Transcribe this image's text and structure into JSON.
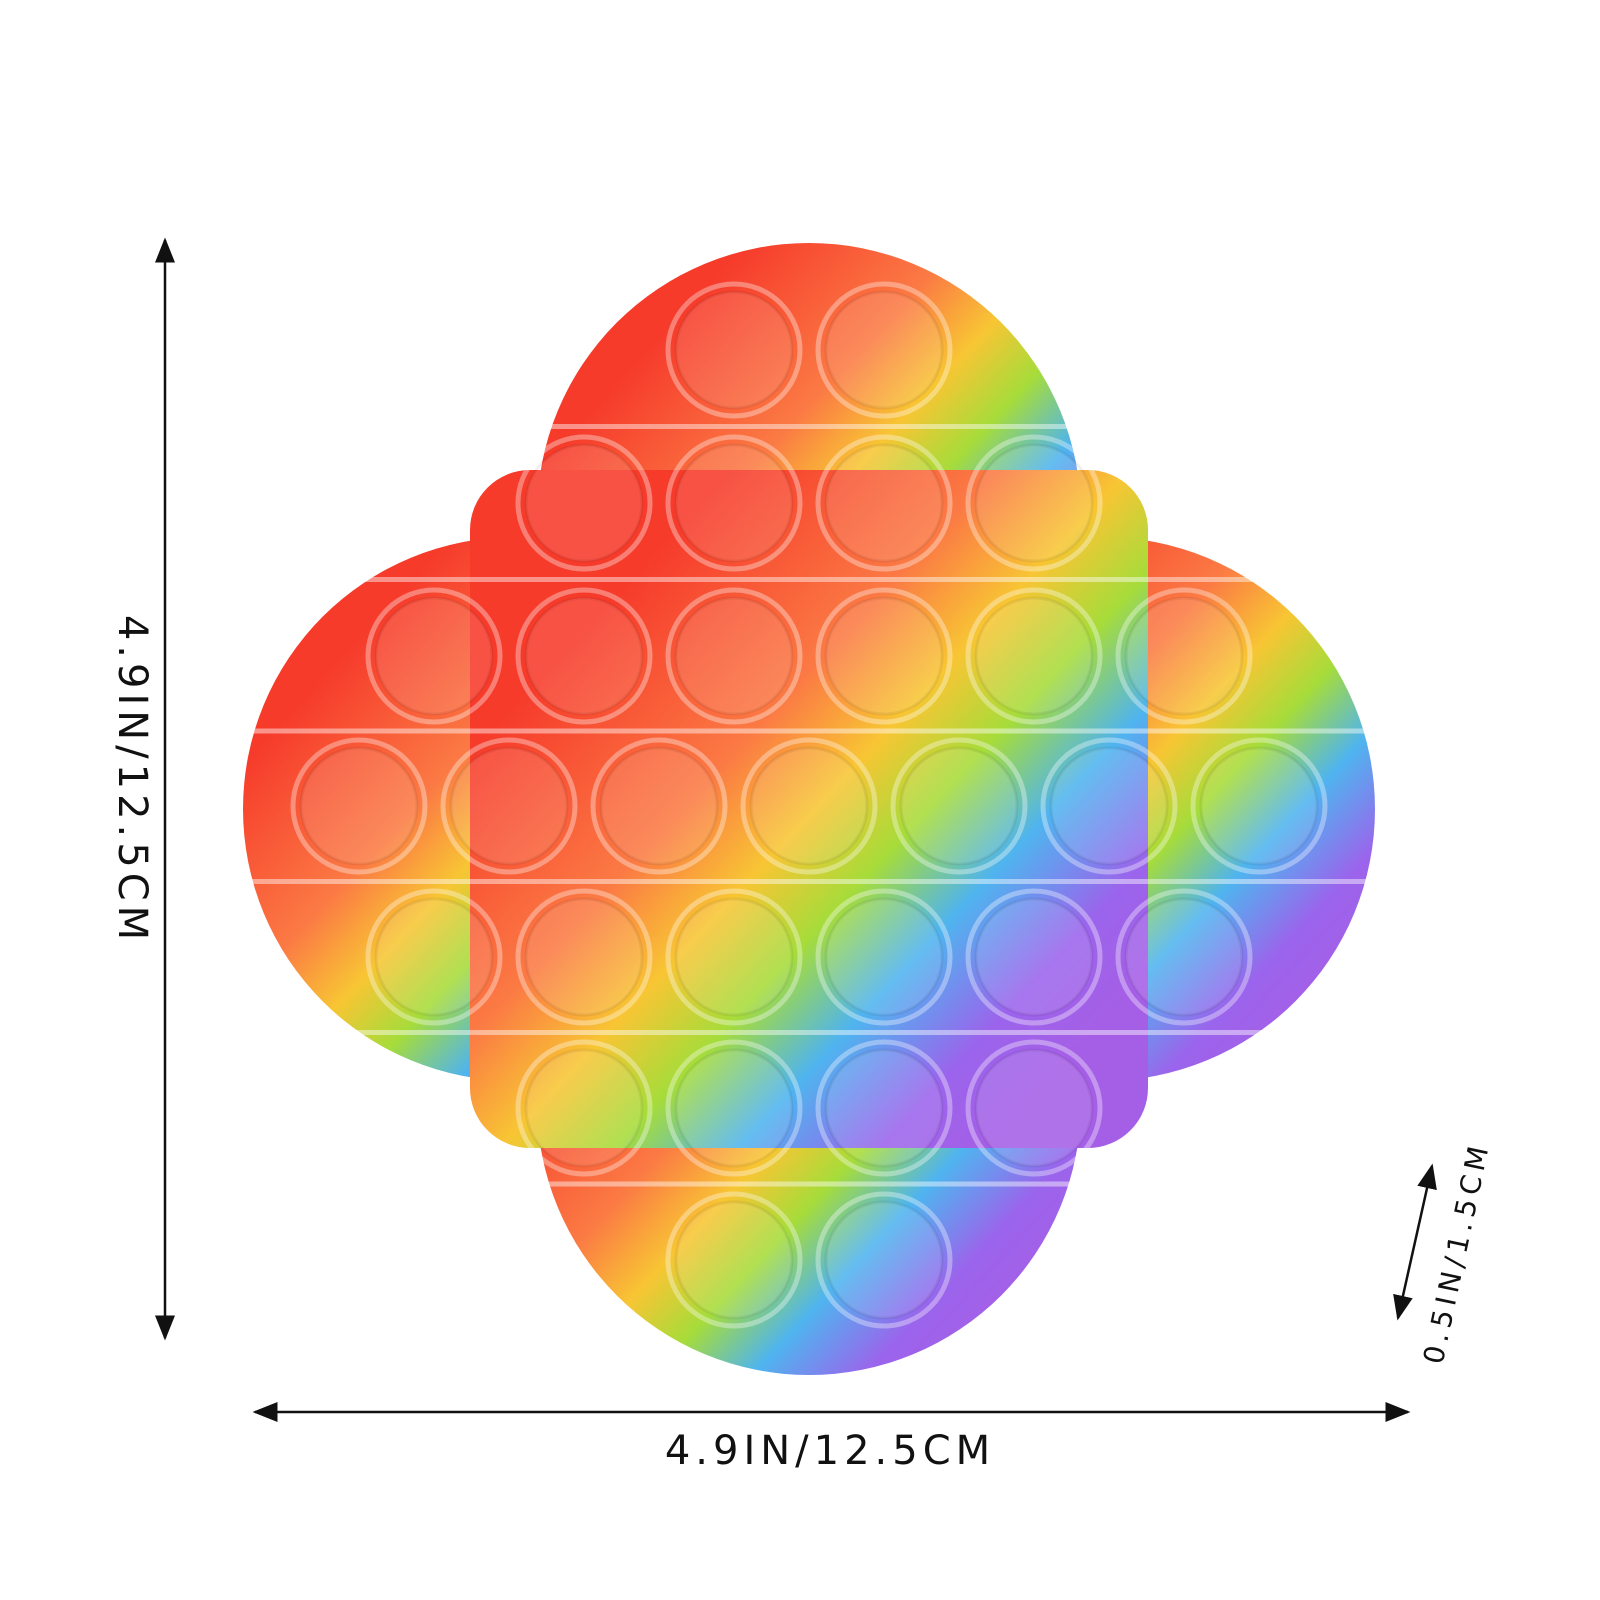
{
  "dimensions": {
    "height": "4.9IN/12.5CM",
    "width": "4.9IN/12.5CM",
    "thickness": "0.5IN/1.5CM"
  }
}
